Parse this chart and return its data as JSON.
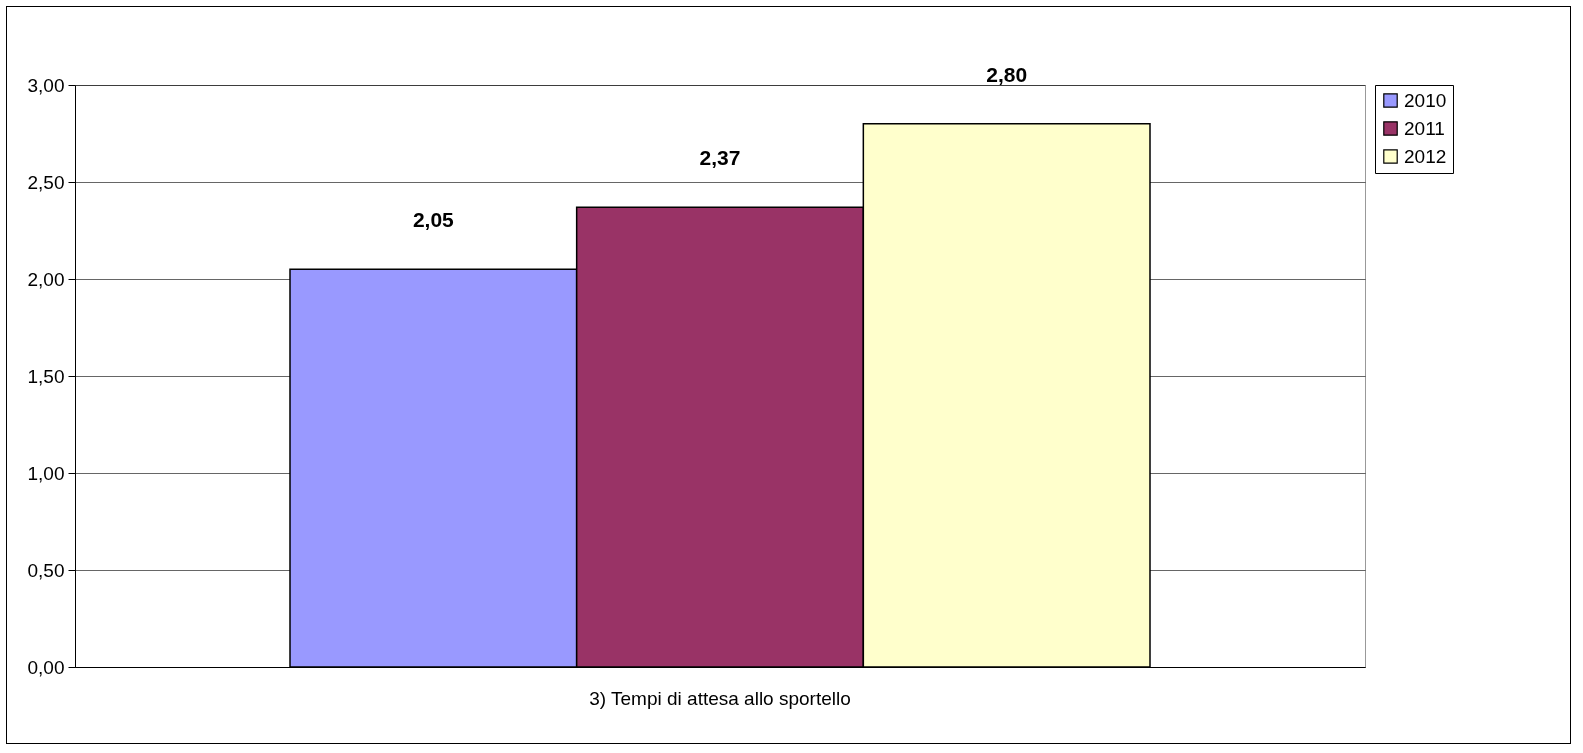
{
  "chart_data": {
    "type": "bar",
    "categories": [
      "3) Tempi di attesa allo sportello"
    ],
    "series": [
      {
        "name": "2010",
        "color": "#9999ff",
        "values": [
          2.05
        ],
        "value_labels": [
          "2,05"
        ]
      },
      {
        "name": "2011",
        "color": "#993366",
        "values": [
          2.37
        ],
        "value_labels": [
          "2,37"
        ]
      },
      {
        "name": "2012",
        "color": "#ffffcc",
        "values": [
          2.8
        ],
        "value_labels": [
          "2,80"
        ]
      }
    ],
    "ylim": [
      0,
      3
    ],
    "yticks": [
      {
        "value": 0,
        "label": "0,00"
      },
      {
        "value": 0.5,
        "label": "0,50"
      },
      {
        "value": 1,
        "label": "1,00"
      },
      {
        "value": 1.5,
        "label": "1,50"
      },
      {
        "value": 2,
        "label": "2,00"
      },
      {
        "value": 2.5,
        "label": "2,50"
      },
      {
        "value": 3,
        "label": "3,00"
      }
    ],
    "grid": "y",
    "legend": "right"
  }
}
